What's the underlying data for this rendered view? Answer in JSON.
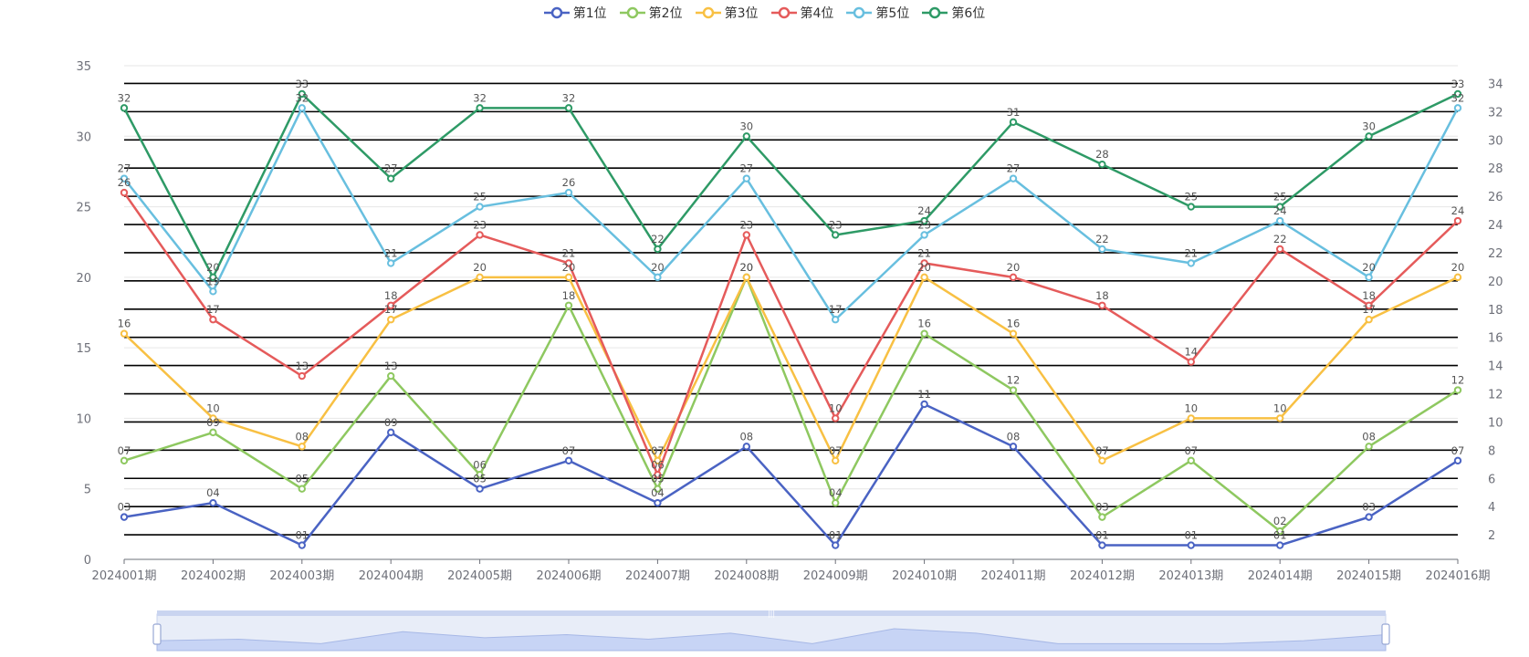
{
  "chart_data": {
    "type": "line",
    "categories": [
      "2024001期",
      "2024002期",
      "2024003期",
      "2024004期",
      "2024005期",
      "2024006期",
      "2024007期",
      "2024008期",
      "2024009期",
      "2024010期",
      "2024011期",
      "2024012期",
      "2024013期",
      "2024014期",
      "2024015期",
      "2024016期"
    ],
    "series": [
      {
        "name": "第1位",
        "color": "#4a63c3",
        "values": [
          3,
          4,
          1,
          9,
          5,
          7,
          4,
          8,
          1,
          11,
          8,
          1,
          1,
          1,
          3,
          7
        ],
        "labels": [
          "03",
          "04",
          "01",
          "09",
          "05",
          "07",
          "04",
          "08",
          "01",
          "11",
          "08",
          "01",
          "01",
          "01",
          "03",
          "07"
        ]
      },
      {
        "name": "第2位",
        "color": "#8ec860",
        "values": [
          7,
          9,
          5,
          13,
          6,
          18,
          5,
          20,
          4,
          16,
          12,
          3,
          7,
          2,
          8,
          12
        ],
        "labels": [
          "07",
          "09",
          "05",
          "13",
          "06",
          "18",
          "05",
          "20",
          "04",
          "16",
          "12",
          "03",
          "07",
          "02",
          "08",
          "12"
        ]
      },
      {
        "name": "第3位",
        "color": "#f8c043",
        "values": [
          16,
          10,
          8,
          17,
          20,
          20,
          7,
          20,
          7,
          20,
          16,
          7,
          10,
          10,
          17,
          20
        ],
        "labels": [
          "16",
          "10",
          "08",
          "17",
          "20",
          "20",
          "07",
          "20",
          "07",
          "20",
          "16",
          "07",
          "10",
          "10",
          "17",
          "20"
        ]
      },
      {
        "name": "第4位",
        "color": "#e55b5b",
        "values": [
          26,
          17,
          13,
          18,
          23,
          21,
          6,
          23,
          10,
          21,
          20,
          18,
          14,
          22,
          18,
          24
        ],
        "labels": [
          "26",
          "17",
          "13",
          "18",
          "23",
          "21",
          "06",
          "23",
          "10",
          "21",
          "20",
          "18",
          "14",
          "22",
          "18",
          "24"
        ]
      },
      {
        "name": "第5位",
        "color": "#68bfdf",
        "values": [
          27,
          19,
          32,
          21,
          25,
          26,
          20,
          27,
          17,
          23,
          27,
          22,
          21,
          24,
          20,
          32
        ],
        "labels": [
          "27",
          "19",
          "32",
          "21",
          "25",
          "26",
          "20",
          "27",
          "17",
          "23",
          "27",
          "22",
          "21",
          "24",
          "20",
          "32"
        ]
      },
      {
        "name": "第6位",
        "color": "#2e9a66",
        "values": [
          32,
          20,
          33,
          27,
          32,
          32,
          22,
          30,
          23,
          24,
          31,
          28,
          25,
          25,
          30,
          33
        ],
        "labels": [
          "32",
          "20",
          "33",
          "27",
          "32",
          "32",
          "22",
          "30",
          "23",
          "24",
          "31",
          "28",
          "25",
          "25",
          "30",
          "33"
        ]
      }
    ],
    "y_left": {
      "min": 0,
      "max": 35,
      "ticks": [
        "0",
        "5",
        "10",
        "15",
        "20",
        "25",
        "30",
        "35"
      ]
    },
    "y_right": {
      "min": 0,
      "max": 35,
      "ticks": [
        "2",
        "4",
        "6",
        "8",
        "10",
        "12",
        "14",
        "16",
        "18",
        "20",
        "22",
        "24",
        "26",
        "28",
        "30",
        "32",
        "34"
      ]
    },
    "grid": true,
    "legend_position": "top-center",
    "data_zoom_slider": true
  }
}
